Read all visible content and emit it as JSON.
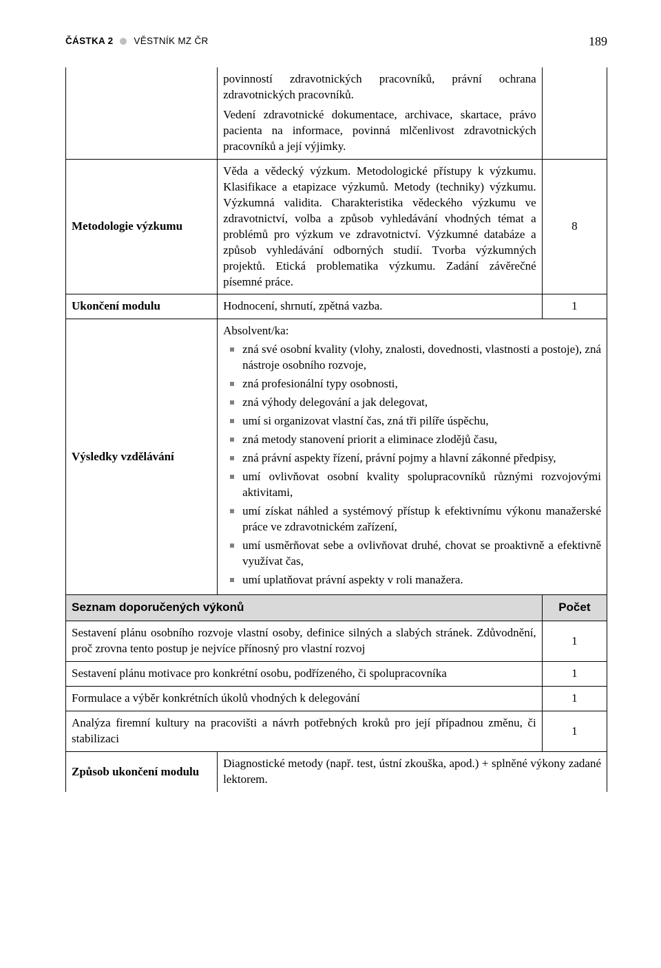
{
  "header": {
    "issue": "ČÁSTKA 2",
    "title": "VĚSTNÍK MZ ČR",
    "pageNum": "189"
  },
  "rows": {
    "intro_para1": "povinností zdravotnických pracovníků, právní ochrana zdravotnických pracovníků.",
    "intro_para2": "Vedení zdravotnické dokumentace, archivace, skartace, právo pacienta na informace, povinná mlčenlivost zdravotnických pracovníků a její výjimky.",
    "metodologie_label": "Metodologie výzkumu",
    "metodologie_body": "Věda a vědecký výzkum. Metodologické přístupy k výzkumu. Klasifikace a etapizace výzkumů. Metody (techniky) výzkumu. Výzkumná validita. Charakteristika vědeckého výzkumu ve zdravotnictví, volba a způsob vyhledávání vhodných témat a problémů pro výzkum ve zdravotnictví. Výzkumné databáze a způsob vyhledávání odborných studií. Tvorba výzkumných projektů. Etická problematika výzkumu. Zadání závěrečné písemné práce.",
    "metodologie_num": "8",
    "ukonceni_label": "Ukončení modulu",
    "ukonceni_body": "Hodnocení, shrnutí, zpětná vazba.",
    "ukonceni_num": "1",
    "vysledky_label": "Výsledky vzdělávání",
    "vysledky_prefix": "Absolvent/ka:",
    "vysledky_items": [
      "zná své osobní kvality (vlohy, znalosti, dovednosti, vlastnosti a postoje), zná nástroje osobního rozvoje,",
      "zná profesionální typy osobnosti,",
      "zná výhody delegování a jak delegovat,",
      "umí si organizovat vlastní čas, zná tři pilíře úspěchu,",
      "zná metody stanovení priorit a eliminace zlodějů času,",
      "zná právní aspekty řízení, právní pojmy a hlavní zákonné předpisy,",
      "umí ovlivňovat osobní kvality spolupracovníků různými rozvojovými aktivitami,",
      "umí získat náhled a systémový přístup k efektivnímu výkonu manažerské práce ve zdravotnickém zařízení,",
      "umí usměrňovat sebe a ovlivňovat druhé, chovat se proaktivně a efektivně využívat čas,",
      "umí uplatňovat právní aspekty v roli manažera."
    ]
  },
  "section": {
    "head_left": "Seznam doporučených výkonů",
    "head_right": "Počet"
  },
  "tasks": [
    {
      "text": "Sestavení plánu osobního rozvoje vlastní osoby, definice silných a slabých stránek. Zdůvodnění, proč zrovna tento postup je nejvíce přínosný pro vlastní rozvoj",
      "num": "1"
    },
    {
      "text": "Sestavení plánu motivace pro konkrétní osobu, podřízeného, či spolupracovníka",
      "num": "1"
    },
    {
      "text": "Formulace a výběr konkrétních úkolů vhodných k delegování",
      "num": "1"
    },
    {
      "text": "Analýza firemní kultury na pracovišti a návrh potřebných kroků pro její případnou změnu, či stabilizaci",
      "num": "1"
    }
  ],
  "footer": {
    "label": "Způsob ukončení modulu",
    "body": "Diagnostické metody (např. test, ústní zkouška, apod.) + splněné výkony zadané lektorem."
  }
}
